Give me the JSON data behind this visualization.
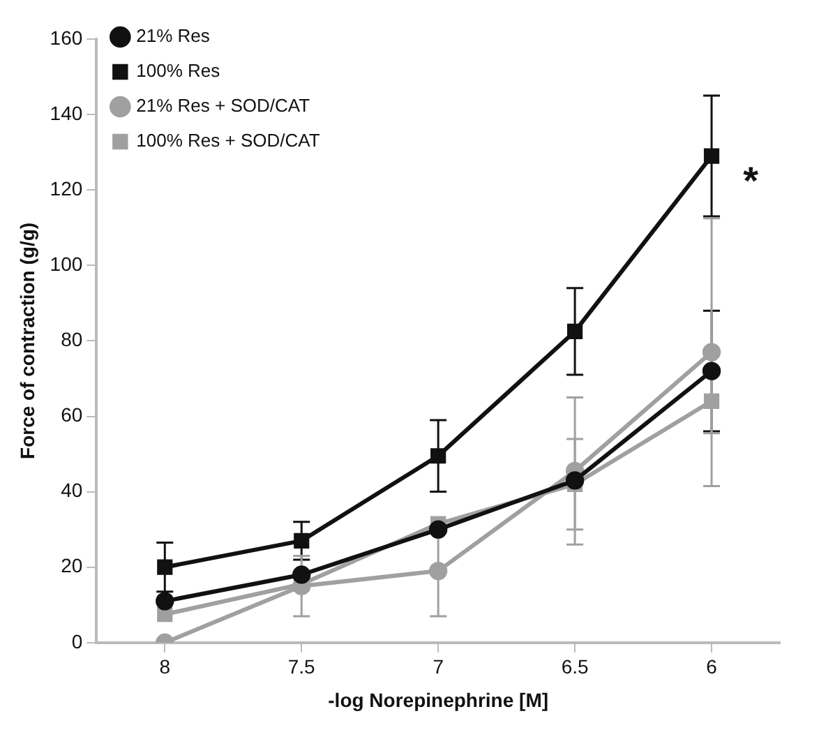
{
  "chart_data": {
    "type": "line",
    "xlabel": "-log Norepinephrine [M]",
    "ylabel": "Force of contraction (g/g)",
    "categories": [
      "8",
      "7.5",
      "7",
      "6.5",
      "6"
    ],
    "series": [
      {
        "name": "21% Res",
        "color": "#111111",
        "marker": "circle",
        "values": [
          11,
          18,
          30,
          43,
          72
        ],
        "errors": [
          null,
          null,
          null,
          null,
          16
        ]
      },
      {
        "name": "100% Res",
        "color": "#111111",
        "marker": "square",
        "values": [
          20,
          27,
          49.5,
          82.5,
          129
        ],
        "errors": [
          6.5,
          5,
          9.5,
          11.5,
          16
        ]
      },
      {
        "name": "21% Res + SOD/CAT",
        "color": "#a0a0a0",
        "marker": "circle",
        "values": [
          0,
          15,
          19,
          45.5,
          77
        ],
        "errors": [
          null,
          8,
          12,
          19.5,
          35.5
        ]
      },
      {
        "name": "100% Res + SOD/CAT",
        "color": "#a0a0a0",
        "marker": "square",
        "values": [
          7.5,
          15.5,
          31.5,
          42,
          64
        ],
        "errors": [
          null,
          null,
          null,
          12,
          8.5
        ]
      }
    ],
    "ylim": [
      0,
      160
    ],
    "yticks": [
      0,
      20,
      40,
      60,
      80,
      100,
      120,
      140,
      160
    ],
    "grid": false,
    "legend": "top left",
    "annotations": [
      {
        "text": "*",
        "x": "6",
        "y": 124
      }
    ]
  }
}
